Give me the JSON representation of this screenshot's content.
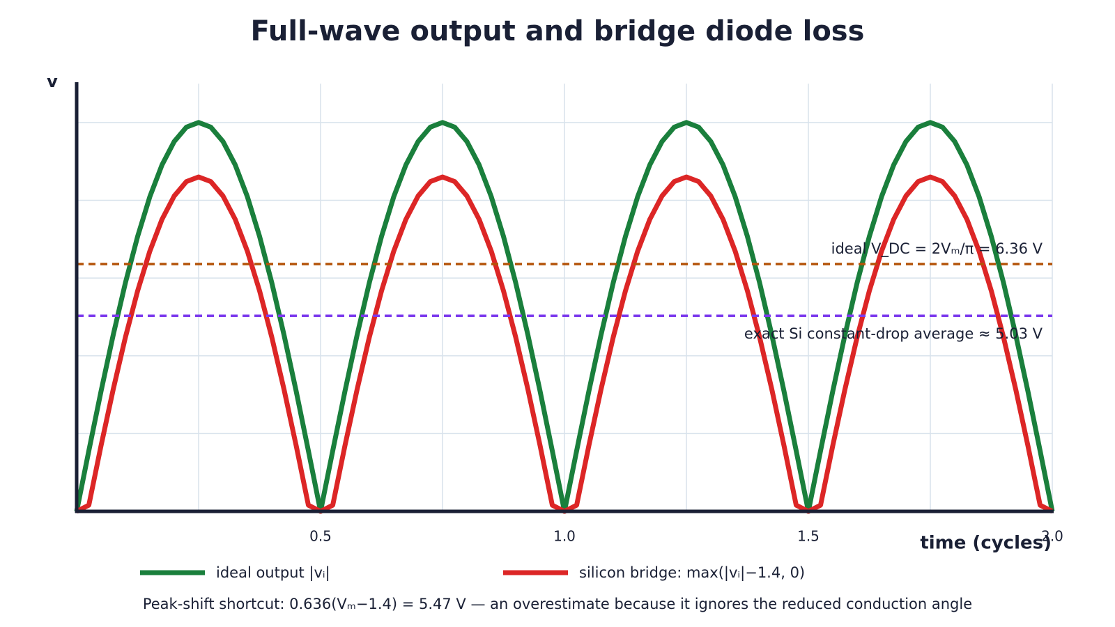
{
  "chart_data": {
    "type": "line",
    "title": "Full-wave output and bridge diode loss",
    "xlabel": "time (cycles)",
    "ylabel": "v",
    "x": [
      0,
      0.025,
      0.05,
      0.075,
      0.1,
      0.125,
      0.15,
      0.175,
      0.2,
      0.225,
      0.25,
      0.275,
      0.3,
      0.325,
      0.35,
      0.375,
      0.4,
      0.425,
      0.45,
      0.475,
      0.5,
      0.525,
      0.55,
      0.575,
      0.6,
      0.625,
      0.65,
      0.675,
      0.7,
      0.725,
      0.75,
      0.775,
      0.8,
      0.825,
      0.85,
      0.875,
      0.9,
      0.925,
      0.95,
      0.975,
      1,
      1.025,
      1.05,
      1.075,
      1.1,
      1.125,
      1.15,
      1.175,
      1.2,
      1.225,
      1.25,
      1.275,
      1.3,
      1.325,
      1.35,
      1.375,
      1.4,
      1.425,
      1.45,
      1.475,
      1.5,
      1.525,
      1.55,
      1.575,
      1.6,
      1.625,
      1.65,
      1.675,
      1.7,
      1.725,
      1.75,
      1.775,
      1.8,
      1.825,
      1.85,
      1.875,
      1.9,
      1.925,
      1.95,
      1.975,
      2
    ],
    "series": [
      {
        "name": "ideal output |vᵢ|",
        "color": "#1a7f3c",
        "values": [
          0,
          1.56,
          3.09,
          4.54,
          5.88,
          7.07,
          8.09,
          8.91,
          9.51,
          9.88,
          10,
          9.88,
          9.51,
          8.91,
          8.09,
          7.07,
          5.88,
          4.54,
          3.09,
          1.56,
          0,
          1.56,
          3.09,
          4.54,
          5.88,
          7.07,
          8.09,
          8.91,
          9.51,
          9.88,
          10,
          9.88,
          9.51,
          8.91,
          8.09,
          7.07,
          5.88,
          4.54,
          3.09,
          1.56,
          0,
          1.56,
          3.09,
          4.54,
          5.88,
          7.07,
          8.09,
          8.91,
          9.51,
          9.88,
          10,
          9.88,
          9.51,
          8.91,
          8.09,
          7.07,
          5.88,
          4.54,
          3.09,
          1.56,
          0,
          1.56,
          3.09,
          4.54,
          5.88,
          7.07,
          8.09,
          8.91,
          9.51,
          9.88,
          10,
          9.88,
          9.51,
          8.91,
          8.09,
          7.07,
          5.88,
          4.54,
          3.09,
          1.56,
          0
        ]
      },
      {
        "name": "silicon bridge: max(|vᵢ|−1.4, 0)",
        "color": "#dc2626",
        "values": [
          0,
          0.16,
          1.69,
          3.14,
          4.48,
          5.67,
          6.69,
          7.51,
          8.11,
          8.48,
          8.6,
          8.48,
          8.11,
          7.51,
          6.69,
          5.67,
          4.48,
          3.14,
          1.69,
          0.16,
          0,
          0.16,
          1.69,
          3.14,
          4.48,
          5.67,
          6.69,
          7.51,
          8.11,
          8.48,
          8.6,
          8.48,
          8.11,
          7.51,
          6.69,
          5.67,
          4.48,
          3.14,
          1.69,
          0.16,
          0,
          0.16,
          1.69,
          3.14,
          4.48,
          5.67,
          6.69,
          7.51,
          8.11,
          8.48,
          8.6,
          8.48,
          8.11,
          7.51,
          6.69,
          5.67,
          4.48,
          3.14,
          1.69,
          0.16,
          0,
          0.16,
          1.69,
          3.14,
          4.48,
          5.67,
          6.69,
          7.51,
          8.11,
          8.48,
          8.6,
          8.48,
          8.11,
          7.51,
          6.69,
          5.67,
          4.48,
          3.14,
          1.69,
          0.16,
          0
        ]
      }
    ],
    "reference_lines": [
      {
        "value": 6.36,
        "label": "ideal V_DC = 2Vₘ/π = 6.36 V",
        "color": "#b45309"
      },
      {
        "value": 5.03,
        "label": "exact Si constant-drop average ≈ 5.03 V",
        "color": "#7c3aed"
      }
    ],
    "xlim": [
      0,
      2
    ],
    "ylim": [
      0,
      11
    ],
    "xticks": [
      0.5,
      {
        "value": 1,
        "label": "1.0"
      },
      1.5,
      {
        "value": 2,
        "label": "2.0"
      }
    ],
    "x_minor_ticks": [
      0.25,
      0.75,
      1.25,
      1.75
    ],
    "ygrid": [
      2,
      4,
      6,
      8,
      10
    ],
    "grid": true,
    "legend": "bottom",
    "footnote": "Peak-shift shortcut: 0.636(Vₘ−1.4) = 5.47 V — an overestimate because it ignores the reduced conduction angle"
  }
}
